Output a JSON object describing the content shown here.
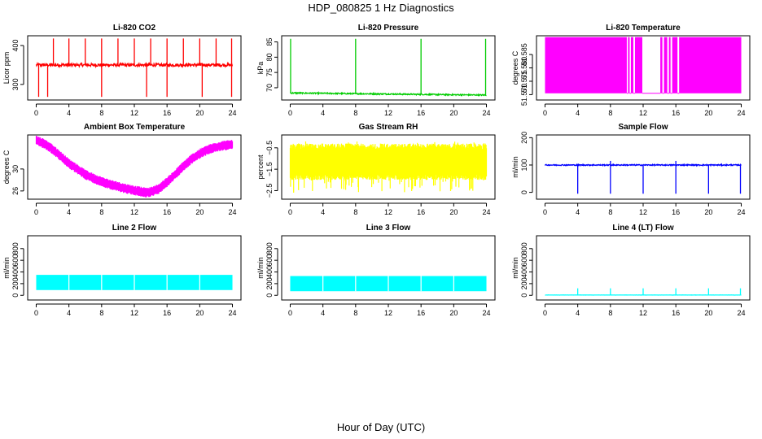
{
  "title": "HDP_080825  1 Hz Diagnostics",
  "xlabel": "Hour of Day (UTC)",
  "chart_data": [
    {
      "id": "co2",
      "type": "line",
      "title": "Li-820 CO2",
      "ylabel": "Licor ppm",
      "color": "#ff0000",
      "xlim": [
        0,
        24
      ],
      "ylim": [
        260,
        425
      ],
      "xticks": [
        0,
        4,
        8,
        12,
        16,
        20,
        24
      ],
      "yticks": [
        300,
        400
      ],
      "series": [
        {
          "name": "CO2",
          "baseline": 350,
          "noise": 4,
          "spikes_up": [
            2.1,
            4,
            6,
            8,
            10,
            12,
            14,
            16,
            18,
            20,
            22,
            23.9
          ],
          "spike_up_peak": 418,
          "spikes_down": [
            0.3,
            1.4,
            8,
            13.5,
            16,
            20.3,
            23.9
          ],
          "spike_down_min": 268
        }
      ]
    },
    {
      "id": "pressure",
      "type": "line",
      "title": "Li-820 Pressure",
      "ylabel": "kPa",
      "color": "#00cc00",
      "xlim": [
        0,
        24
      ],
      "ylim": [
        66,
        87
      ],
      "xticks": [
        0,
        4,
        8,
        12,
        16,
        20,
        24
      ],
      "yticks": [
        70,
        75,
        80,
        85
      ],
      "series": [
        {
          "name": "Pressure",
          "baseline_start": 68.3,
          "baseline_end": 67.6,
          "noise": 0.2,
          "spikes_up": [
            0.05,
            8,
            16,
            23.9
          ],
          "spike_up_peak": 86
        }
      ]
    },
    {
      "id": "temp820",
      "type": "area",
      "title": "Li-820 Temperature",
      "ylabel": "degrees C",
      "color": "#ff00ff",
      "xlim": [
        0,
        24
      ],
      "ylim": [
        51.568,
        51.592
      ],
      "xticks": [
        0,
        4,
        8,
        12,
        16,
        20,
        24
      ],
      "yticks": [
        51.57,
        51.575,
        51.58,
        51.585
      ],
      "series": [
        {
          "name": "Temperature",
          "low": 51.5705,
          "high": 51.5915,
          "gaps": [
            [
              10.0,
              10.15
            ],
            [
              10.35,
              10.5
            ],
            [
              10.8,
              11.0
            ],
            [
              11.9,
              14.1
            ],
            [
              14.35,
              14.55
            ],
            [
              14.95,
              15.15
            ],
            [
              15.35,
              15.55
            ],
            [
              16.2,
              16.4
            ]
          ]
        }
      ]
    },
    {
      "id": "ambient",
      "type": "band",
      "title": "Ambient Box Temperature",
      "ylabel": "degrees C",
      "color": "#ff00ff",
      "xlim": [
        0,
        24
      ],
      "ylim": [
        24.5,
        36.2
      ],
      "xticks": [
        0,
        4,
        8,
        12,
        16,
        20,
        24
      ],
      "yticks": [
        26,
        30
      ],
      "series": [
        {
          "name": "Ambient",
          "width": 0.9,
          "curve": [
            [
              0,
              35.2
            ],
            [
              1,
              34.6
            ],
            [
              2,
              33.6
            ],
            [
              3,
              32.3
            ],
            [
              4,
              31.0
            ],
            [
              5,
              30.0
            ],
            [
              6,
              29.0
            ],
            [
              7,
              28.3
            ],
            [
              8,
              27.7
            ],
            [
              9,
              27.2
            ],
            [
              10,
              26.8
            ],
            [
              11,
              26.4
            ],
            [
              12,
              26.1
            ],
            [
              13,
              25.8
            ],
            [
              13.5,
              25.7
            ],
            [
              14,
              25.8
            ],
            [
              15,
              26.4
            ],
            [
              16,
              27.6
            ],
            [
              17,
              29.0
            ],
            [
              18,
              30.5
            ],
            [
              19,
              31.8
            ],
            [
              20,
              32.8
            ],
            [
              21,
              33.5
            ],
            [
              22,
              34.0
            ],
            [
              23,
              34.3
            ],
            [
              24,
              34.4
            ]
          ]
        }
      ]
    },
    {
      "id": "rh",
      "type": "band",
      "title": "Gas Stream RH",
      "ylabel": "percent",
      "color": "#ffff00",
      "xlim": [
        0,
        24
      ],
      "ylim": [
        -2.9,
        0.1
      ],
      "xticks": [
        0,
        4,
        8,
        12,
        16,
        20,
        24
      ],
      "yticks": [
        -2.5,
        -1.5,
        -0.5
      ],
      "series": [
        {
          "name": "RH",
          "center": -1.15,
          "half_width": 0.85,
          "spike_min": -2.6,
          "spike_max": -0.2
        }
      ]
    },
    {
      "id": "sample",
      "type": "line",
      "title": "Sample Flow",
      "ylabel": "ml/min",
      "color": "#0000ff",
      "xlim": [
        0,
        24
      ],
      "ylim": [
        -25,
        210
      ],
      "xticks": [
        0,
        4,
        8,
        12,
        16,
        20,
        24
      ],
      "yticks": [
        0,
        100,
        200
      ],
      "series": [
        {
          "name": "Sample",
          "baseline": 100,
          "noise": 2,
          "spikes_down": [
            4,
            8,
            12,
            16,
            20,
            23.9
          ],
          "spike_down_min": -5,
          "spikes_up": [
            8,
            16
          ],
          "spike_up_peak": 115
        }
      ]
    },
    {
      "id": "line2",
      "type": "band",
      "title": "Line 2 Flow",
      "ylabel": "ml/min",
      "color": "#00ffff",
      "xlim": [
        0,
        24
      ],
      "ylim": [
        -80,
        1020
      ],
      "xticks": [
        0,
        4,
        8,
        12,
        16,
        20,
        24
      ],
      "yticks": [
        0,
        200,
        400,
        600,
        800
      ],
      "series": [
        {
          "name": "Line 2",
          "low": 90,
          "high": 350,
          "breaks": [
            4,
            8,
            12,
            16,
            20
          ]
        }
      ]
    },
    {
      "id": "line3",
      "type": "band",
      "title": "Line 3 Flow",
      "ylabel": "ml/min",
      "color": "#00ffff",
      "xlim": [
        0,
        24
      ],
      "ylim": [
        -80,
        1020
      ],
      "xticks": [
        0,
        4,
        8,
        12,
        16,
        20,
        24
      ],
      "yticks": [
        0,
        200,
        400,
        600,
        800
      ],
      "series": [
        {
          "name": "Line 3",
          "low": 70,
          "high": 330,
          "breaks": [
            4,
            8,
            12,
            16,
            20
          ]
        }
      ]
    },
    {
      "id": "line4",
      "type": "line",
      "title": "Line 4 (LT) Flow",
      "ylabel": "ml/min",
      "color": "#00ffff",
      "xlim": [
        0,
        24
      ],
      "ylim": [
        -80,
        1020
      ],
      "xticks": [
        0,
        4,
        8,
        12,
        16,
        20,
        24
      ],
      "yticks": [
        0,
        200,
        400,
        600,
        800
      ],
      "series": [
        {
          "name": "Line 4",
          "baseline": 5,
          "noise": 1,
          "spikes_up": [
            4,
            8,
            12,
            16,
            20,
            23.9
          ],
          "spike_up_peak": 120
        }
      ]
    }
  ]
}
